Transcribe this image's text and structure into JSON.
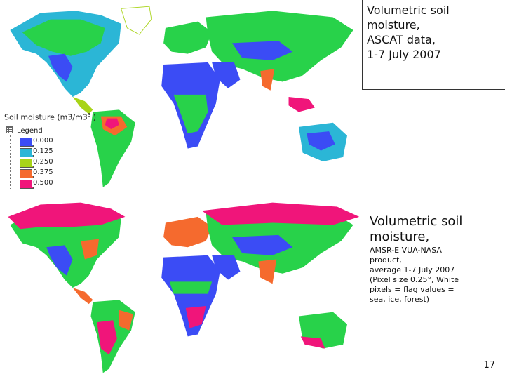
{
  "top_caption": {
    "lines": [
      "Volumetric soil",
      "moisture,",
      "ASCAT data,",
      "1-7 July 2007"
    ]
  },
  "bottom_caption": {
    "title_lines": [
      "Volumetric soil",
      "moisture,"
    ],
    "detail_lines": [
      "AMSR-E VUA-NASA",
      "product,",
      "average 1-7 July 2007",
      "(Pixel size 0.25°, White",
      "pixels = flag values =",
      "sea, ice, forest)"
    ]
  },
  "legend": {
    "title": "Soil moisture (m3/m3",
    "title_sup": "3",
    "title_close": " )",
    "header": "Legend",
    "items": [
      {
        "label": "0.000",
        "color": "#3b4cf5"
      },
      {
        "label": "0.125",
        "color": "#2bb6d6"
      },
      {
        "label": "0.250",
        "color": "#a8d418"
      },
      {
        "label": "0.375",
        "color": "#f56a2e"
      },
      {
        "label": "0.500",
        "color": "#f0157a"
      }
    ]
  },
  "page_number": "17",
  "colors": {
    "dry": "#3b4cf5",
    "low": "#2bb6d6",
    "mid": "#28d24a",
    "midhigh": "#a8d418",
    "high": "#f56a2e",
    "wet": "#f0157a"
  }
}
